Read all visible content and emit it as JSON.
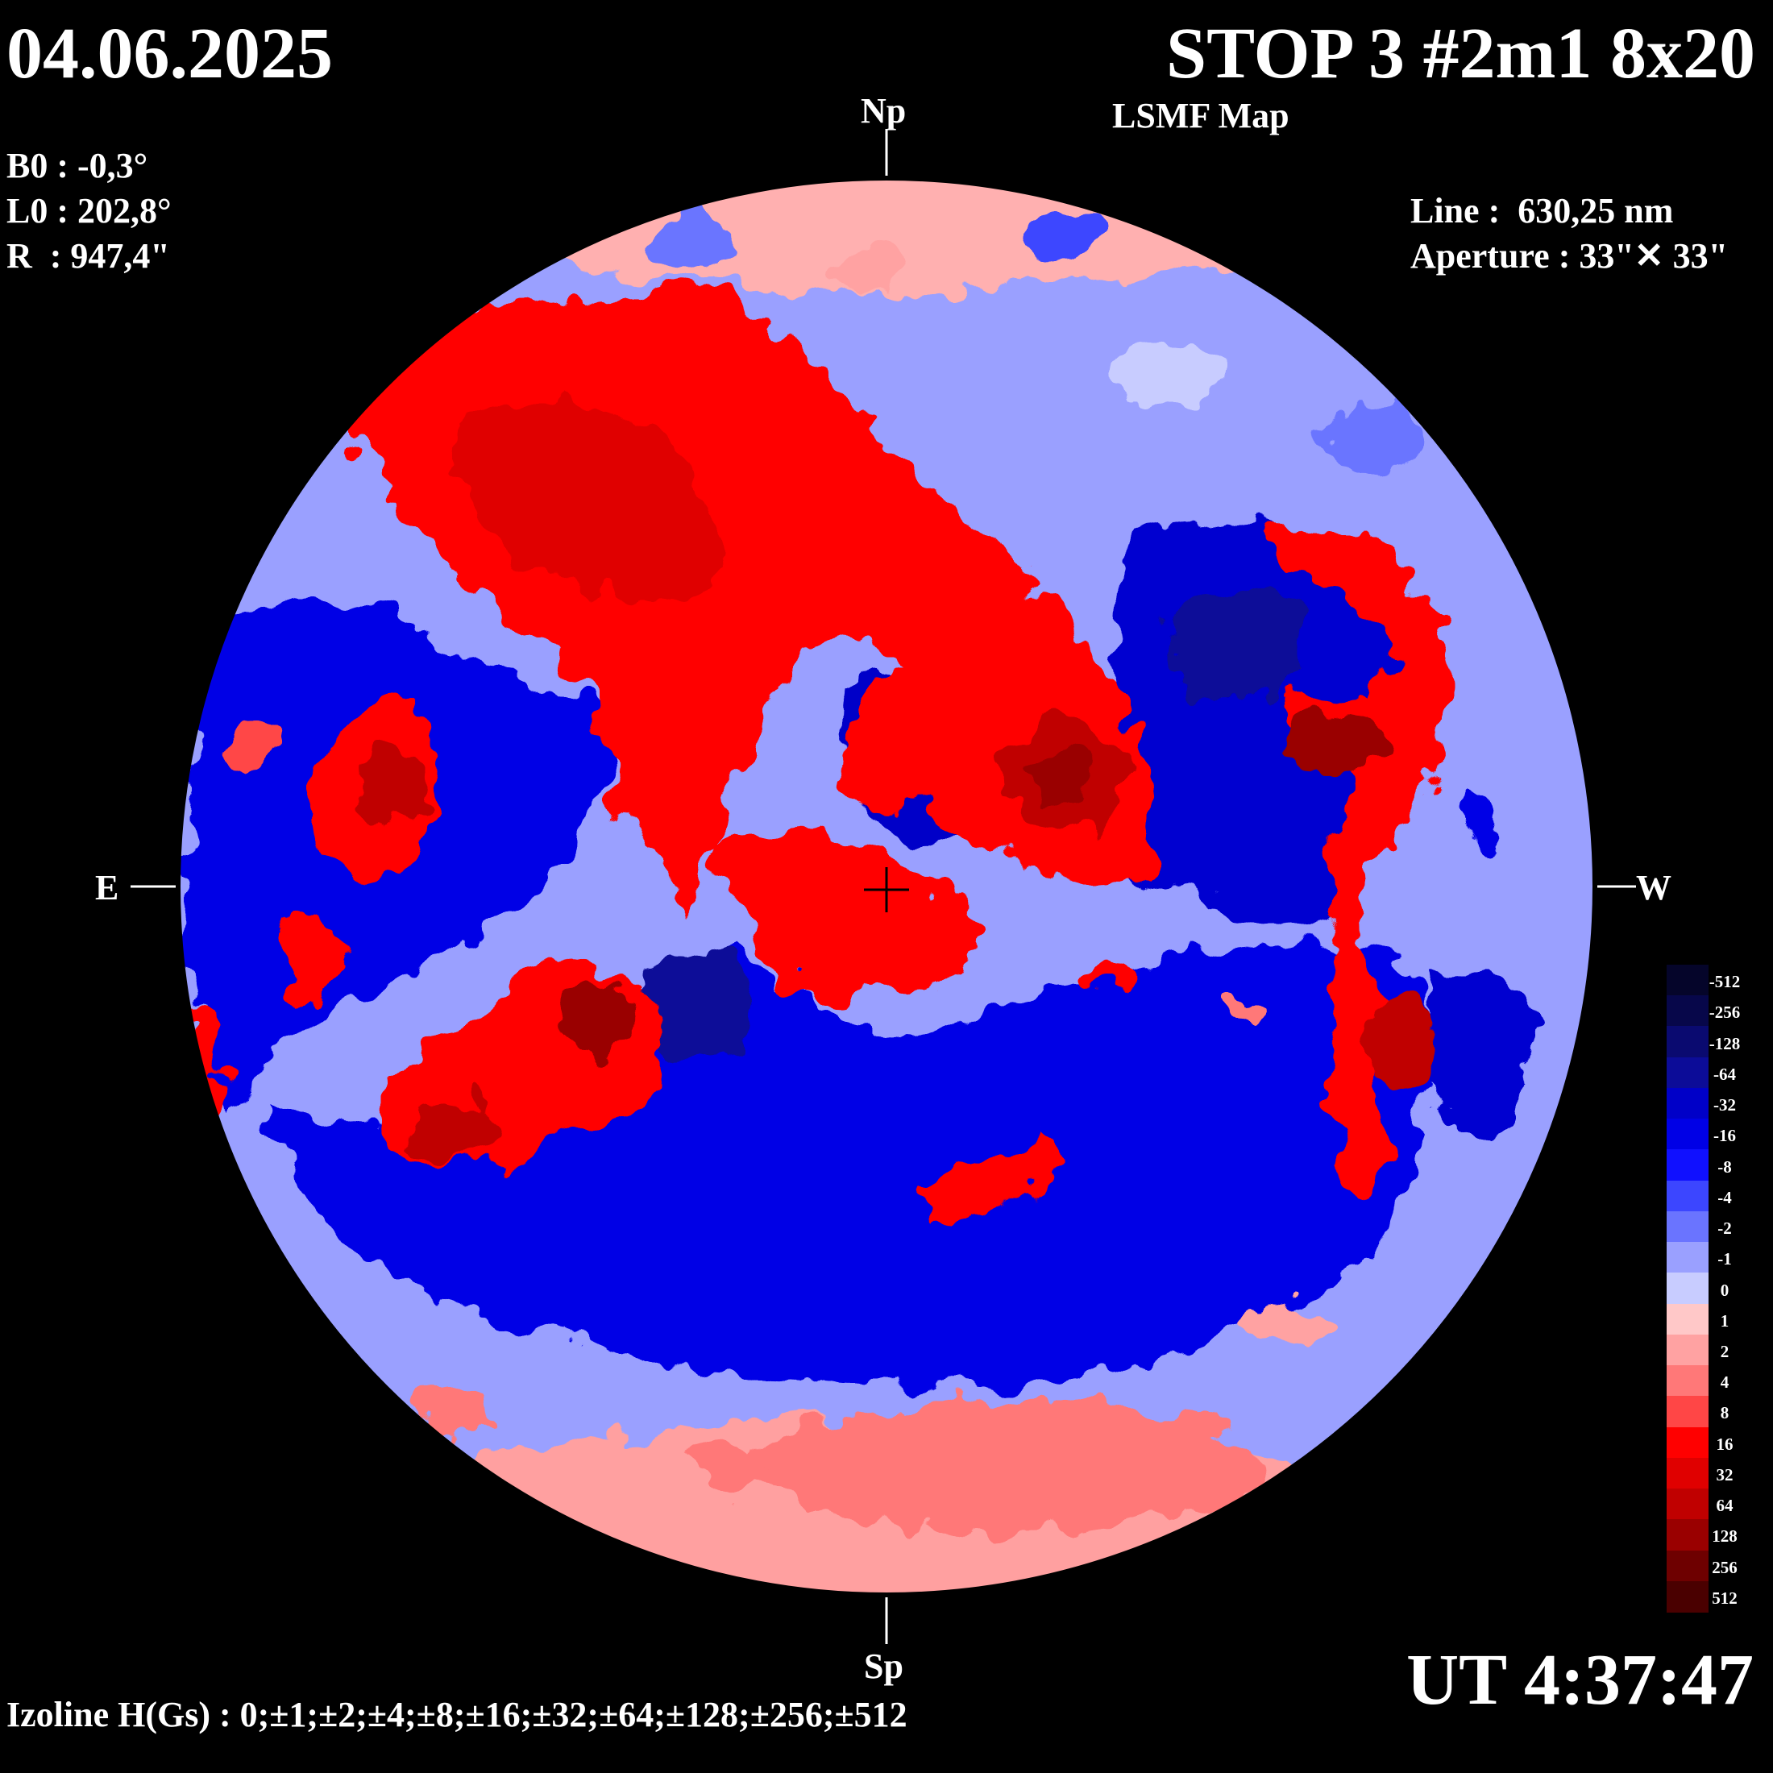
{
  "header": {
    "date": "04.06.2025",
    "title": "STOP 3 #2m1 8x20",
    "subtitle": "LSMF  Map"
  },
  "params": {
    "b0": "B0 : -0,3°",
    "l0": "L0 : 202,8°",
    "r": "R  : 947,4\""
  },
  "instrument": {
    "line": "Line :  630,25 nm",
    "aperture": "Aperture : 33\"✕ 33\""
  },
  "directions": {
    "north": "Np",
    "south": "Sp",
    "east": "E",
    "west": "W"
  },
  "time": "UT 4:37:47",
  "izoline": "Izoline H(Gs) : 0;±1;±2;±4;±8;±16;±32;±64;±128;±256;±512",
  "legend": {
    "labels": [
      "-512",
      "-256",
      "-128",
      "-64",
      "-32",
      "-16",
      "-8",
      "-4",
      "-2",
      "-1",
      "0",
      "1",
      "2",
      "4",
      "8",
      "16",
      "32",
      "64",
      "128",
      "256",
      "512"
    ],
    "colors": [
      "#05052a",
      "#07074a",
      "#0a0a70",
      "#0c0c98",
      "#0000c8",
      "#0000e6",
      "#1010ff",
      "#3c46ff",
      "#6a74ff",
      "#9aa0ff",
      "#c8ccff",
      "#ffc8c8",
      "#ffa2a2",
      "#ff7878",
      "#ff4646",
      "#ff0000",
      "#e00000",
      "#c00000",
      "#9a0000",
      "#6e0000",
      "#4a0000"
    ]
  }
}
